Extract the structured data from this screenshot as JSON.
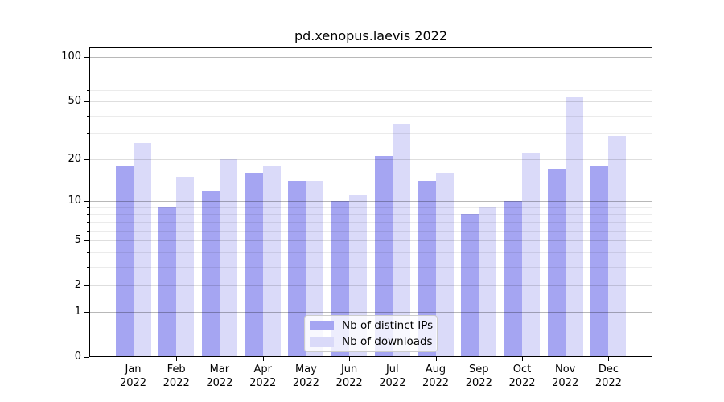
{
  "window": {
    "background": "#ffffff"
  },
  "chart_data": {
    "type": "bar",
    "title": "pd.xenopus.laevis 2022",
    "categories": [
      "Jan 2022",
      "Feb 2022",
      "Mar 2022",
      "Apr 2022",
      "May 2022",
      "Jun 2022",
      "Jul 2022",
      "Aug 2022",
      "Sep 2022",
      "Oct 2022",
      "Nov 2022",
      "Dec 2022"
    ],
    "series": [
      {
        "name": "Nb of distinct IPs",
        "color": "#a5a5f2",
        "values": [
          18,
          9,
          12,
          16,
          14,
          10,
          21,
          14,
          8,
          10,
          17,
          18
        ]
      },
      {
        "name": "Nb of downloads",
        "color": "#dadaf9",
        "values": [
          26,
          15,
          20,
          18,
          14,
          11,
          35,
          16,
          9,
          22,
          53,
          29
        ]
      }
    ],
    "xlabel": "",
    "ylabel": "",
    "yscale": "log10(1+x)",
    "ylim": [
      0,
      115
    ],
    "yticks_labeled": [
      0,
      1,
      2,
      5,
      10,
      20,
      50,
      100
    ],
    "yticks_decade": [
      1,
      10,
      100
    ],
    "yticks_minor": [
      3,
      4,
      6,
      7,
      8,
      9,
      30,
      40,
      60,
      70,
      80,
      90
    ],
    "grid": "horizontal, major and minor",
    "legend_position": "lower center"
  },
  "colors": {
    "spine": "#000000",
    "grid_major": "rgba(0,0,0,0.28)",
    "grid_mid": "rgba(0,0,0,0.13)",
    "grid_minor": "rgba(0,0,0,0.08)",
    "legend_border": "#cccccc",
    "legend_background": "rgba(255,255,255,0.8)"
  }
}
